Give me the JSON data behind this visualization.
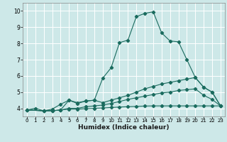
{
  "xlabel": "Humidex (Indice chaleur)",
  "background_color": "#cde8e8",
  "grid_color": "#b8d8d8",
  "line_color": "#1a6b5e",
  "xlim": [
    -0.5,
    23.5
  ],
  "ylim": [
    3.5,
    10.5
  ],
  "xticks": [
    0,
    1,
    2,
    3,
    4,
    5,
    6,
    7,
    8,
    9,
    10,
    11,
    12,
    13,
    14,
    15,
    16,
    17,
    18,
    19,
    20,
    21,
    22,
    23
  ],
  "yticks": [
    4,
    5,
    6,
    7,
    8,
    9,
    10
  ],
  "lines": [
    {
      "x": [
        0,
        1,
        2,
        3,
        4,
        5,
        6,
        7,
        8,
        9,
        10,
        11,
        12,
        13,
        14,
        15,
        16,
        17,
        18,
        19,
        20,
        21,
        22,
        23
      ],
      "y": [
        3.9,
        4.0,
        3.85,
        3.95,
        4.25,
        4.5,
        4.3,
        4.45,
        4.5,
        5.85,
        6.5,
        8.05,
        8.2,
        9.65,
        9.85,
        9.95,
        8.65,
        8.15,
        8.1,
        7.0,
        5.9,
        5.3,
        5.0,
        4.15
      ]
    },
    {
      "x": [
        0,
        2,
        3,
        4,
        5,
        6,
        7,
        8,
        9,
        10,
        11,
        12,
        13,
        14,
        15,
        16,
        17,
        18,
        19,
        20,
        21,
        22,
        23
      ],
      "y": [
        3.9,
        3.85,
        3.85,
        3.9,
        4.5,
        4.35,
        4.45,
        4.5,
        4.35,
        4.5,
        4.65,
        4.8,
        5.0,
        5.2,
        5.35,
        5.5,
        5.6,
        5.7,
        5.8,
        5.9,
        5.3,
        5.0,
        4.15
      ]
    },
    {
      "x": [
        0,
        2,
        3,
        4,
        5,
        6,
        7,
        8,
        9,
        10,
        11,
        12,
        13,
        14,
        15,
        16,
        17,
        18,
        19,
        20,
        21,
        22,
        23
      ],
      "y": [
        3.9,
        3.85,
        3.85,
        3.9,
        4.0,
        4.0,
        4.1,
        4.15,
        4.2,
        4.3,
        4.42,
        4.55,
        4.65,
        4.75,
        4.85,
        4.95,
        5.0,
        5.1,
        5.15,
        5.2,
        4.8,
        4.55,
        4.15
      ]
    },
    {
      "x": [
        0,
        2,
        3,
        4,
        5,
        6,
        7,
        8,
        9,
        10,
        11,
        12,
        13,
        14,
        15,
        16,
        17,
        18,
        19,
        20,
        21,
        22,
        23
      ],
      "y": [
        3.9,
        3.85,
        3.85,
        3.9,
        3.95,
        3.95,
        3.98,
        4.0,
        4.02,
        4.05,
        4.08,
        4.1,
        4.12,
        4.14,
        4.15,
        4.15,
        4.15,
        4.15,
        4.15,
        4.15,
        4.15,
        4.15,
        4.15
      ]
    }
  ]
}
